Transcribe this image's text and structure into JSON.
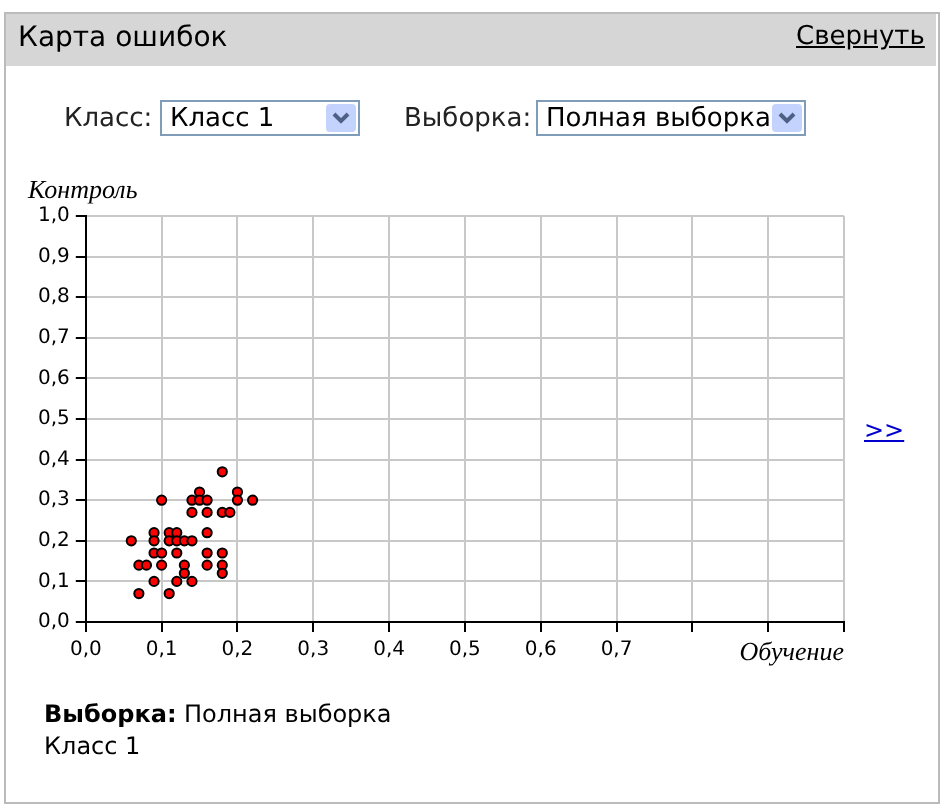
{
  "chart_data": {
    "type": "scatter",
    "title": "Карта ошибок",
    "xlabel": "Обучение",
    "ylabel": "Контроль",
    "annotations": [
      "Свернуть",
      "Класс:",
      "Класс 1",
      "Выборка:",
      "Полная выборка",
      ">>",
      "Выборка:",
      "Полная выборка",
      "Класс 1"
    ],
    "series": [
      {
        "color": "#ff0000",
        "x": [
          0.18,
          0.15,
          0.2,
          0.1,
          0.14,
          0.15,
          0.16,
          0.2,
          0.22,
          0.14,
          0.16,
          0.18,
          0.19,
          0.09,
          0.11,
          0.12,
          0.16,
          0.06,
          0.09,
          0.11,
          0.12,
          0.13,
          0.14,
          0.09,
          0.1,
          0.12,
          0.16,
          0.18,
          0.07,
          0.08,
          0.1,
          0.13,
          0.16,
          0.18,
          0.13,
          0.18,
          0.09,
          0.12,
          0.14,
          0.07,
          0.11
        ],
        "values": [
          0.37,
          0.32,
          0.32,
          0.3,
          0.3,
          0.3,
          0.3,
          0.3,
          0.3,
          0.27,
          0.27,
          0.27,
          0.27,
          0.22,
          0.22,
          0.22,
          0.22,
          0.2,
          0.2,
          0.2,
          0.2,
          0.2,
          0.2,
          0.17,
          0.17,
          0.17,
          0.17,
          0.17,
          0.14,
          0.14,
          0.14,
          0.14,
          0.14,
          0.14,
          0.12,
          0.12,
          0.1,
          0.1,
          0.1,
          0.07,
          0.07
        ]
      }
    ],
    "marker": "circle",
    "grid": true,
    "legend": false,
    "xlim": [
      0,
      1
    ],
    "xticks": [
      {
        "value": 0,
        "label": "0,0"
      },
      {
        "value": 0.1,
        "label": "0,1"
      },
      {
        "value": 0.2,
        "label": "0,2"
      },
      {
        "value": 0.3,
        "label": "0,3"
      },
      {
        "value": 0.4,
        "label": "0,4"
      },
      {
        "value": 0.5,
        "label": "0,5"
      },
      {
        "value": 0.6,
        "label": "0,6"
      },
      {
        "value": 0.7,
        "label": "0,7"
      },
      {
        "value": 0.8,
        "label": null
      },
      {
        "value": 0.9,
        "label": null
      },
      {
        "value": 1,
        "label": null
      }
    ],
    "ylim": [
      0,
      1
    ],
    "yticks": [
      {
        "value": 0,
        "label": "0,0"
      },
      {
        "value": 0.1,
        "label": "0,1"
      },
      {
        "value": 0.2,
        "label": "0,2"
      },
      {
        "value": 0.3,
        "label": "0,3"
      },
      {
        "value": 0.4,
        "label": "0,4"
      },
      {
        "value": 0.5,
        "label": "0,5"
      },
      {
        "value": 0.6,
        "label": "0,6"
      },
      {
        "value": 0.7,
        "label": "0,7"
      },
      {
        "value": 0.8,
        "label": "0,8"
      },
      {
        "value": 0.9,
        "label": "0,9"
      },
      {
        "value": 1,
        "label": "1,0"
      }
    ]
  }
}
